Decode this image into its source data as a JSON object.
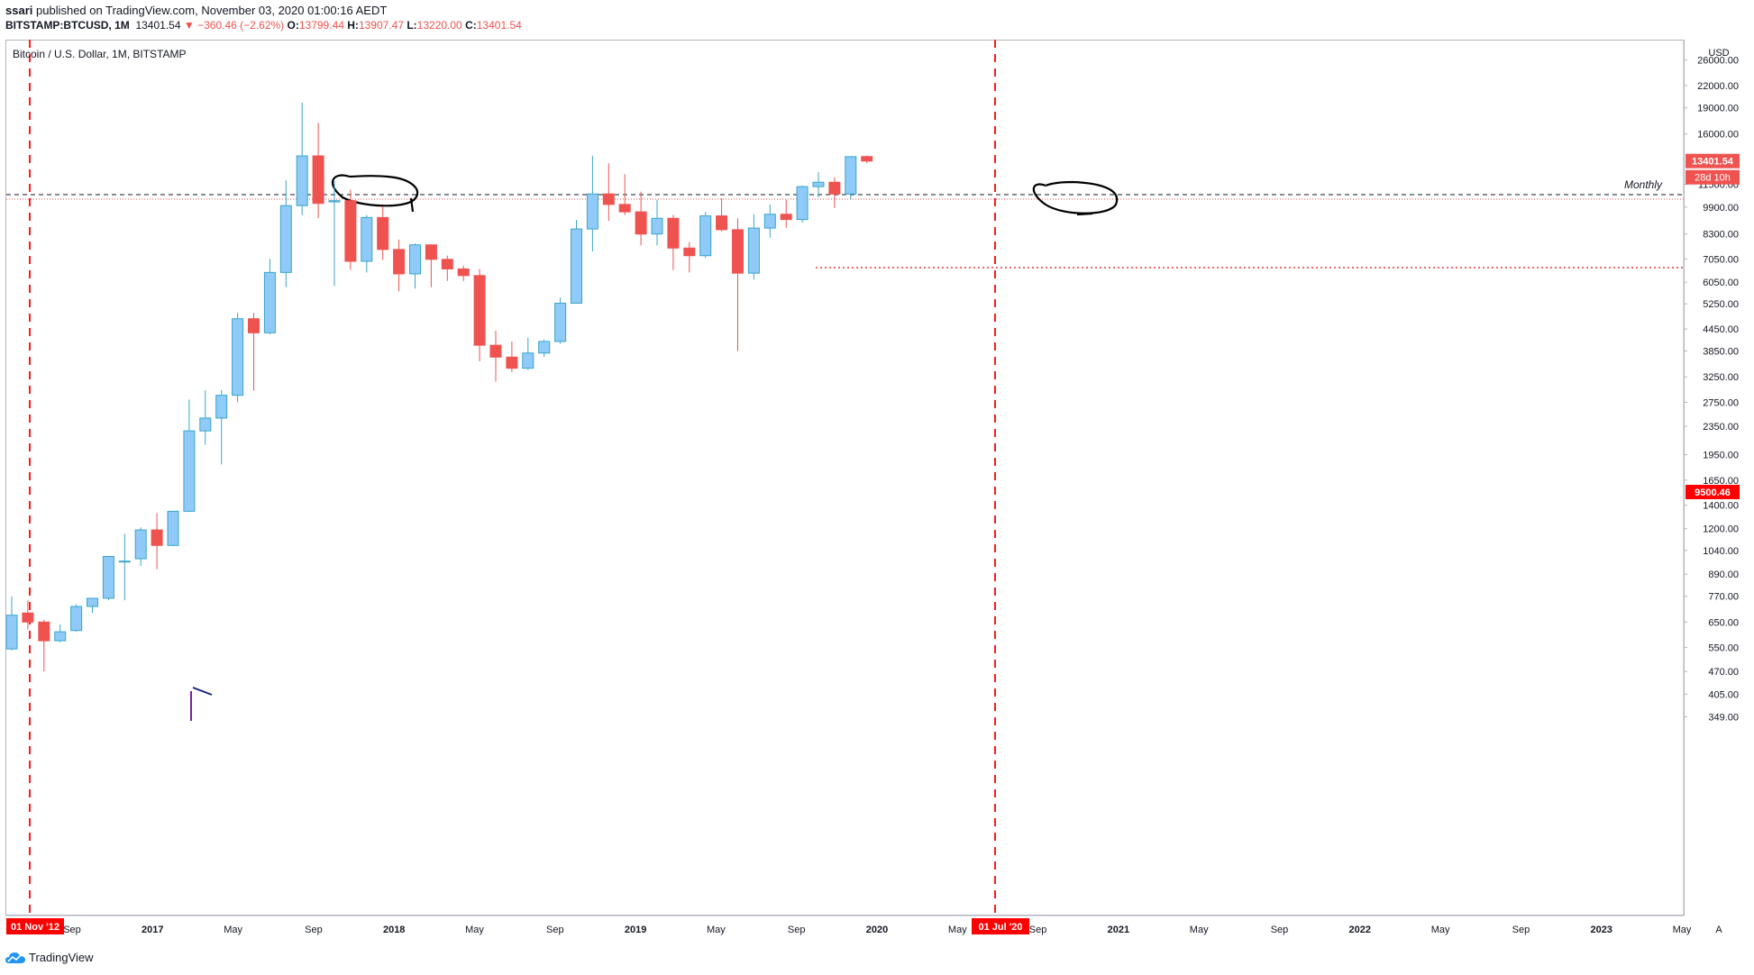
{
  "header": {
    "publisher": "ssari",
    "published_text": "published on TradingView.com, November 03, 2020 01:00:16 AEDT",
    "symbol": "BITSTAMP:BTCUSD, 1M",
    "last": "13401.54",
    "change": "−360.46 (−2.62%)",
    "o_label": "O:",
    "o": "13799.44",
    "h_label": "H:",
    "h": "13907.47",
    "l_label": "L:",
    "l": "13220.00",
    "c_label": "C:",
    "c": "13401.54"
  },
  "chart_title": "Bitcoin / U.S. Dollar, 1M, BITSTAMP",
  "currency_label": "USD",
  "auto_label": "A",
  "footer_brand": "TradingView",
  "colors": {
    "up": "#90caf9",
    "up_border": "#3aa6c8",
    "down": "#ef5350",
    "marker": "#ff0000"
  },
  "chart_data": {
    "type": "candlestick",
    "title": "Bitcoin / U.S. Dollar, 1M, BITSTAMP",
    "yscale": "log",
    "ylim": [
      320,
      32000
    ],
    "y_ticks": [
      31000,
      26000,
      22000,
      19000,
      16000,
      11500,
      9900,
      8300,
      7050,
      6050,
      5250,
      4450,
      3850,
      3250,
      2750,
      2350,
      1950,
      1650,
      1400,
      1200,
      1040,
      890,
      770,
      650,
      550,
      470,
      405,
      349
    ],
    "x_ticks": [
      "Sep",
      "2017",
      "May",
      "Sep",
      "2018",
      "May",
      "Sep",
      "2019",
      "May",
      "Sep",
      "2020",
      "May",
      "Sep",
      "2021",
      "May",
      "Sep",
      "2022",
      "May",
      "Sep",
      "2023",
      "May"
    ],
    "candles": [
      {
        "o": 545,
        "h": 770,
        "l": 540,
        "c": 680
      },
      {
        "o": 690,
        "h": 750,
        "l": 620,
        "c": 650
      },
      {
        "o": 650,
        "h": 660,
        "l": 470,
        "c": 575
      },
      {
        "o": 575,
        "h": 640,
        "l": 570,
        "c": 610
      },
      {
        "o": 615,
        "h": 730,
        "l": 610,
        "c": 720
      },
      {
        "o": 720,
        "h": 760,
        "l": 690,
        "c": 760
      },
      {
        "o": 760,
        "h": 1000,
        "l": 750,
        "c": 1000
      },
      {
        "o": 970,
        "h": 1160,
        "l": 750,
        "c": 970
      },
      {
        "o": 985,
        "h": 1210,
        "l": 940,
        "c": 1190
      },
      {
        "o": 1190,
        "h": 1330,
        "l": 920,
        "c": 1075
      },
      {
        "o": 1075,
        "h": 1350,
        "l": 1070,
        "c": 1345
      },
      {
        "o": 1345,
        "h": 2800,
        "l": 1340,
        "c": 2280
      },
      {
        "o": 2280,
        "h": 2980,
        "l": 2080,
        "c": 2480
      },
      {
        "o": 2480,
        "h": 2980,
        "l": 1830,
        "c": 2880
      },
      {
        "o": 2880,
        "h": 4950,
        "l": 2750,
        "c": 4760
      },
      {
        "o": 4760,
        "h": 4950,
        "l": 2970,
        "c": 4340
      },
      {
        "o": 4340,
        "h": 7050,
        "l": 4300,
        "c": 6450
      },
      {
        "o": 6450,
        "h": 11800,
        "l": 5850,
        "c": 10000
      },
      {
        "o": 10000,
        "h": 19650,
        "l": 9400,
        "c": 13860
      },
      {
        "o": 13860,
        "h": 17200,
        "l": 9200,
        "c": 10150
      },
      {
        "o": 10250,
        "h": 11750,
        "l": 5900,
        "c": 10330
      },
      {
        "o": 10330,
        "h": 11100,
        "l": 6560,
        "c": 6940
      },
      {
        "o": 6940,
        "h": 9400,
        "l": 6450,
        "c": 9250
      },
      {
        "o": 9250,
        "h": 9950,
        "l": 7000,
        "c": 7500
      },
      {
        "o": 7500,
        "h": 8000,
        "l": 5700,
        "c": 6390
      },
      {
        "o": 6390,
        "h": 7800,
        "l": 5800,
        "c": 7730
      },
      {
        "o": 7730,
        "h": 7750,
        "l": 5850,
        "c": 7030
      },
      {
        "o": 7030,
        "h": 7200,
        "l": 6100,
        "c": 6600
      },
      {
        "o": 6600,
        "h": 6750,
        "l": 6100,
        "c": 6320
      },
      {
        "o": 6320,
        "h": 6600,
        "l": 3600,
        "c": 4000
      },
      {
        "o": 4000,
        "h": 4400,
        "l": 3150,
        "c": 3700
      },
      {
        "o": 3700,
        "h": 4100,
        "l": 3350,
        "c": 3440
      },
      {
        "o": 3440,
        "h": 4200,
        "l": 3400,
        "c": 3800
      },
      {
        "o": 3800,
        "h": 4150,
        "l": 3700,
        "c": 4100
      },
      {
        "o": 4100,
        "h": 5470,
        "l": 4040,
        "c": 5270
      },
      {
        "o": 5270,
        "h": 9100,
        "l": 5270,
        "c": 8580
      },
      {
        "o": 8580,
        "h": 13880,
        "l": 7400,
        "c": 10800
      },
      {
        "o": 10800,
        "h": 13200,
        "l": 9050,
        "c": 10080
      },
      {
        "o": 10080,
        "h": 12300,
        "l": 9400,
        "c": 9600
      },
      {
        "o": 9600,
        "h": 10950,
        "l": 7700,
        "c": 8300
      },
      {
        "o": 8300,
        "h": 10400,
        "l": 7700,
        "c": 9200
      },
      {
        "o": 9200,
        "h": 9400,
        "l": 6550,
        "c": 7570
      },
      {
        "o": 7570,
        "h": 7870,
        "l": 6450,
        "c": 7200
      },
      {
        "o": 7200,
        "h": 9600,
        "l": 7100,
        "c": 9350
      },
      {
        "o": 9350,
        "h": 10500,
        "l": 8450,
        "c": 8540
      },
      {
        "o": 8540,
        "h": 9200,
        "l": 3850,
        "c": 6420
      },
      {
        "o": 6420,
        "h": 9450,
        "l": 6150,
        "c": 8630
      },
      {
        "o": 8630,
        "h": 10070,
        "l": 8100,
        "c": 9450
      },
      {
        "o": 9450,
        "h": 10400,
        "l": 8650,
        "c": 9130
      },
      {
        "o": 9130,
        "h": 11400,
        "l": 8950,
        "c": 11330
      },
      {
        "o": 11330,
        "h": 12450,
        "l": 10550,
        "c": 11660
      },
      {
        "o": 11660,
        "h": 12050,
        "l": 9850,
        "c": 10790
      },
      {
        "o": 10790,
        "h": 13850,
        "l": 10400,
        "c": 13790
      },
      {
        "o": 13799.44,
        "h": 13907.47,
        "l": 13220,
        "c": 13401.54
      }
    ],
    "price_labels": {
      "last": "13401.54",
      "countdown": "28d 10h",
      "level": "9500.46"
    },
    "horizontal_line_label": "Monthly",
    "date_markers": [
      "01 Nov '12",
      "01 Jul '20"
    ]
  }
}
